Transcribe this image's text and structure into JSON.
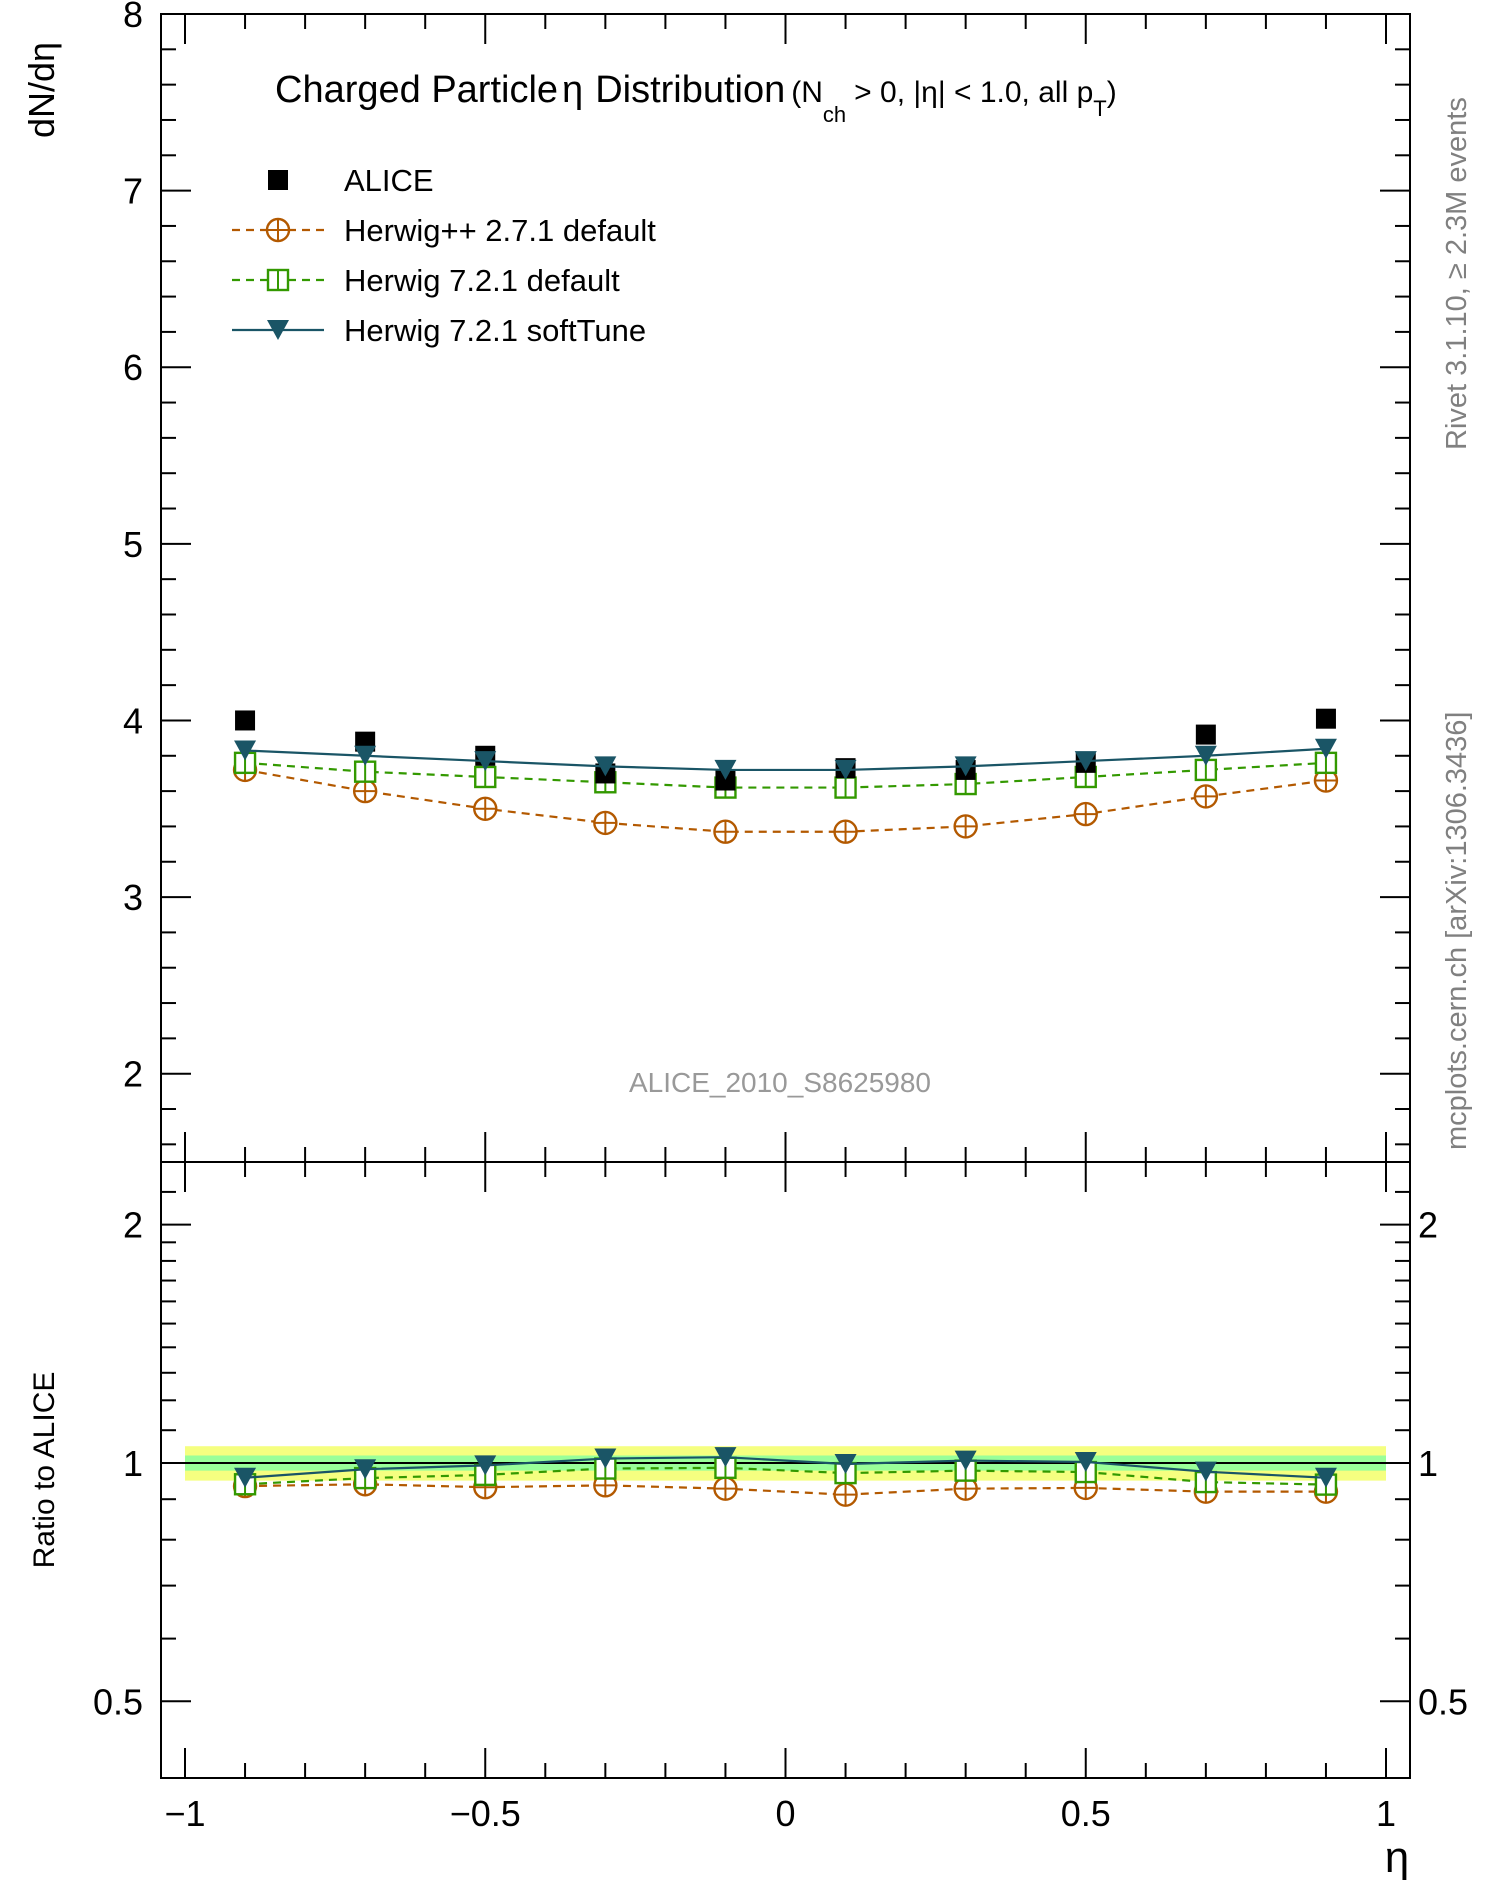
{
  "chart_data": [
    {
      "type": "scatter",
      "panel": "main",
      "title": "Charged Particle",
      "title_symbol": "η",
      "title_tail": "Distribution",
      "title_cuts": {
        "prefix": "(N",
        "sub1": "ch",
        "mid": "> 0, |η| < 1.0, all p",
        "sub2": "T",
        "suffix": ")"
      },
      "ylabel": "dN/dη",
      "xlabel": "η",
      "xlim": [
        -1.0,
        1.0
      ],
      "ylim": [
        1.5,
        8.0
      ],
      "y_ticks": [
        2,
        3,
        4,
        5,
        6,
        7,
        8
      ],
      "y_tick_labels": [
        "2",
        "3",
        "4",
        "5",
        "6",
        "7",
        "8"
      ],
      "legend_position": "top-left",
      "analysis_label": "ALICE_2010_S8625980",
      "x": [
        -0.9,
        -0.7,
        -0.5,
        -0.3,
        -0.1,
        0.1,
        0.3,
        0.5,
        0.7,
        0.9
      ],
      "series": [
        {
          "name": "ALICE",
          "color": "#000000",
          "marker": "filled-square",
          "line": "none",
          "values": [
            4.0,
            3.88,
            3.8,
            3.7,
            3.66,
            3.73,
            3.72,
            3.76,
            3.92,
            4.01
          ]
        },
        {
          "name": "Herwig++ 2.7.1 default",
          "color": "#b35900",
          "marker": "open-circle-cross",
          "line": "dashed",
          "values": [
            3.72,
            3.6,
            3.5,
            3.42,
            3.37,
            3.37,
            3.4,
            3.47,
            3.57,
            3.66
          ]
        },
        {
          "name": "Herwig 7.2.1 default",
          "color": "#339900",
          "marker": "open-square-cross",
          "line": "dashed",
          "values": [
            3.76,
            3.71,
            3.68,
            3.65,
            3.62,
            3.62,
            3.64,
            3.68,
            3.72,
            3.76
          ]
        },
        {
          "name": "Herwig 7.2.1 softTune",
          "color": "#1a5566",
          "marker": "filled-down-triangle",
          "line": "solid",
          "values": [
            3.83,
            3.8,
            3.77,
            3.74,
            3.72,
            3.72,
            3.74,
            3.77,
            3.8,
            3.84
          ]
        }
      ]
    },
    {
      "type": "scatter",
      "panel": "ratio",
      "ylabel": "Ratio to ALICE",
      "xlabel": "η",
      "xlim": [
        -1.0,
        1.0
      ],
      "ylim": [
        0.4,
        2.4
      ],
      "y_scale": "log",
      "y_ticks": [
        0.5,
        1,
        2
      ],
      "y_tick_labels": [
        "0.5",
        "1",
        "2"
      ],
      "x_ticks": [
        -1,
        -0.5,
        0,
        0.5,
        1
      ],
      "x_tick_labels": [
        "−1",
        "−0.5",
        "0",
        "0.5",
        "1"
      ],
      "bands": {
        "outer_color": "#f5ff80",
        "inner_color": "#99ff99",
        "outer_halfwidth": 0.05,
        "inner_halfwidth": 0.022
      },
      "x": [
        -0.9,
        -0.7,
        -0.5,
        -0.3,
        -0.1,
        0.1,
        0.3,
        0.5,
        0.7,
        0.9
      ],
      "series": [
        {
          "name": "Herwig++ 2.7.1 default",
          "values": [
            0.935,
            0.94,
            0.932,
            0.937,
            0.928,
            0.912,
            0.928,
            0.93,
            0.92,
            0.92
          ]
        },
        {
          "name": "Herwig 7.2.1 default",
          "values": [
            0.94,
            0.957,
            0.966,
            0.984,
            0.986,
            0.971,
            0.978,
            0.974,
            0.946,
            0.939
          ]
        },
        {
          "name": "Herwig 7.2.1 softTune",
          "values": [
            0.958,
            0.982,
            0.993,
            1.013,
            1.017,
            0.997,
            1.007,
            1.003,
            0.975,
            0.958
          ]
        }
      ]
    }
  ],
  "side_labels": {
    "top": "Rivet 3.1.10, ≥ 2.3M events",
    "bottom": "mcplots.cern.ch [arXiv:1306.3436]"
  }
}
